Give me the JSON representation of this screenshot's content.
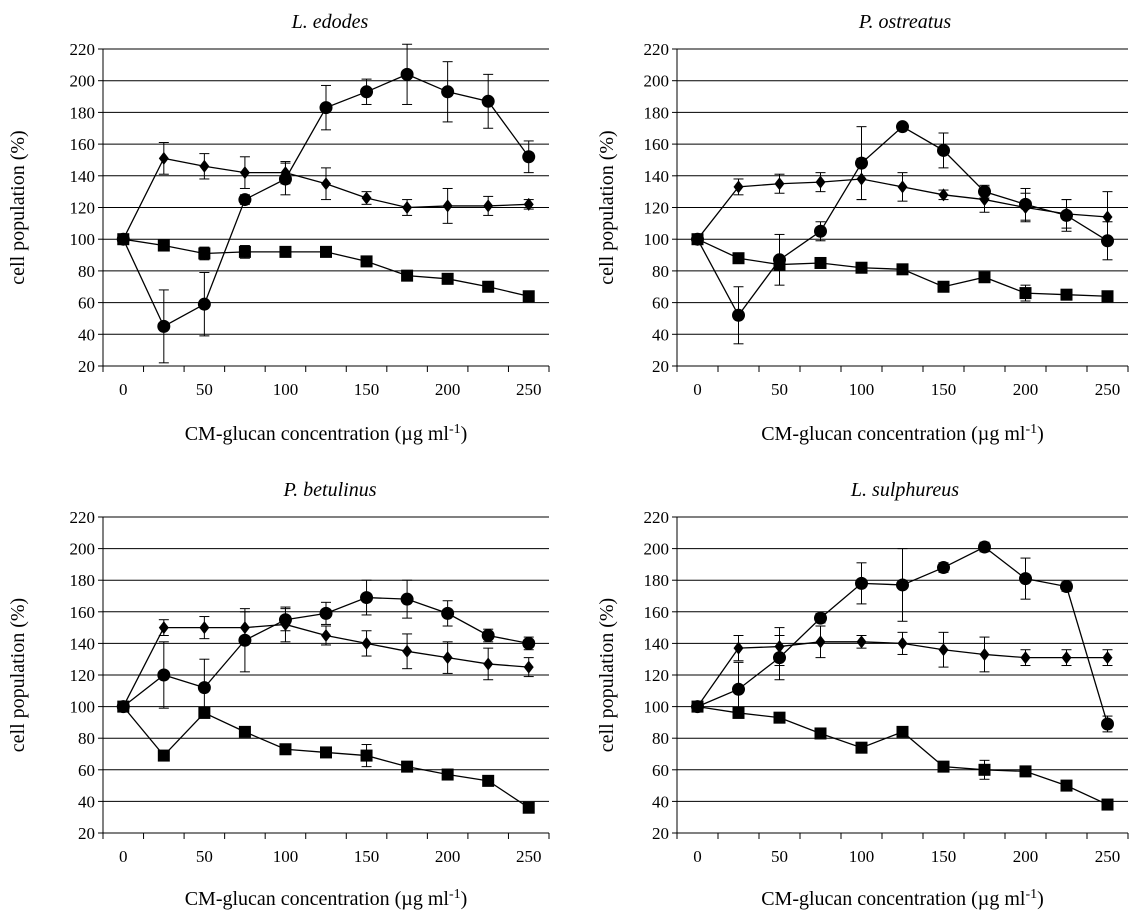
{
  "figure": {
    "xlabel_main": "CM-glucan concentration (µg ml",
    "xlabel_sup": "-1",
    "xlabel_end": ")",
    "ylabel": "cell population (%)"
  },
  "chart_data": [
    {
      "type": "line",
      "title": "L. edodes",
      "xlabel": "CM-glucan concentration (µg ml-1)",
      "ylabel": "cell population (%)",
      "xlim": [
        -12.5,
        262.5
      ],
      "ylim": [
        20,
        220
      ],
      "xticks": [
        0,
        50,
        100,
        150,
        200,
        250
      ],
      "yticks": [
        20,
        40,
        60,
        80,
        100,
        120,
        140,
        160,
        180,
        200,
        220
      ],
      "grid": "horizontal",
      "x": [
        0,
        25,
        50,
        75,
        100,
        125,
        150,
        175,
        200,
        225,
        250
      ],
      "series": [
        {
          "marker": "circle",
          "values": [
            100,
            45,
            59,
            125,
            138,
            183,
            193,
            204,
            193,
            187,
            152
          ],
          "errors": [
            3,
            23,
            20,
            3,
            10,
            14,
            8,
            19,
            19,
            17,
            10
          ]
        },
        {
          "marker": "diamond",
          "values": [
            100,
            151,
            146,
            142,
            142,
            135,
            126,
            120,
            121,
            121,
            122
          ],
          "errors": [
            3,
            10,
            8,
            10,
            7,
            10,
            4,
            5,
            11,
            6,
            3
          ]
        },
        {
          "marker": "square",
          "values": [
            100,
            96,
            91,
            92,
            92,
            92,
            86,
            77,
            75,
            70,
            64
          ],
          "errors": [
            3,
            3,
            4,
            4,
            3,
            3,
            3,
            3,
            3,
            3,
            3
          ]
        }
      ]
    },
    {
      "type": "line",
      "title": "P. ostreatus",
      "xlabel": "CM-glucan concentration (µg ml-1)",
      "ylabel": "cell population (%)",
      "xlim": [
        -12.5,
        262.5
      ],
      "ylim": [
        20,
        220
      ],
      "xticks": [
        0,
        50,
        100,
        150,
        200,
        250
      ],
      "yticks": [
        20,
        40,
        60,
        80,
        100,
        120,
        140,
        160,
        180,
        200,
        220
      ],
      "grid": "horizontal",
      "x": [
        0,
        25,
        50,
        75,
        100,
        125,
        150,
        175,
        200,
        225,
        250
      ],
      "series": [
        {
          "marker": "circle",
          "values": [
            100,
            52,
            87,
            105,
            148,
            171,
            156,
            130,
            122,
            115,
            99
          ],
          "errors": [
            3,
            18,
            16,
            6,
            23,
            2,
            11,
            4,
            10,
            10,
            12
          ]
        },
        {
          "marker": "diamond",
          "values": [
            100,
            133,
            135,
            136,
            138,
            133,
            128,
            125,
            120,
            116,
            114
          ],
          "errors": [
            3,
            5,
            6,
            6,
            13,
            9,
            3,
            8,
            9,
            9,
            16
          ]
        },
        {
          "marker": "square",
          "values": [
            100,
            88,
            84,
            85,
            82,
            81,
            70,
            76,
            66,
            65,
            64
          ],
          "errors": [
            3,
            3,
            3,
            3,
            3,
            3,
            3,
            3,
            5,
            3,
            3
          ]
        }
      ]
    },
    {
      "type": "line",
      "title": "P. betulinus",
      "xlabel": "CM-glucan concentration (µg ml-1)",
      "ylabel": "cell population (%)",
      "xlim": [
        -12.5,
        262.5
      ],
      "ylim": [
        20,
        220
      ],
      "xticks": [
        0,
        50,
        100,
        150,
        200,
        250
      ],
      "yticks": [
        20,
        40,
        60,
        80,
        100,
        120,
        140,
        160,
        180,
        200,
        220
      ],
      "grid": "horizontal",
      "x": [
        0,
        25,
        50,
        75,
        100,
        125,
        150,
        175,
        200,
        225,
        250
      ],
      "series": [
        {
          "marker": "circle",
          "values": [
            100,
            120,
            112,
            142,
            155,
            159,
            169,
            168,
            159,
            145,
            140
          ],
          "errors": [
            3,
            21,
            18,
            20,
            7,
            7,
            11,
            12,
            8,
            4,
            4
          ]
        },
        {
          "marker": "diamond",
          "values": [
            100,
            150,
            150,
            150,
            152,
            145,
            140,
            135,
            131,
            127,
            125
          ],
          "errors": [
            3,
            5,
            7,
            10,
            11,
            6,
            8,
            11,
            10,
            10,
            6
          ]
        },
        {
          "marker": "square",
          "values": [
            100,
            69,
            96,
            84,
            73,
            71,
            69,
            62,
            57,
            53,
            36
          ],
          "errors": [
            3,
            3,
            3,
            3,
            3,
            3,
            7,
            3,
            3,
            3,
            3
          ]
        }
      ]
    },
    {
      "type": "line",
      "title": "L. sulphureus",
      "xlabel": "CM-glucan concentration (µg ml-1)",
      "ylabel": "cell population (%)",
      "xlim": [
        -12.5,
        262.5
      ],
      "ylim": [
        20,
        220
      ],
      "xticks": [
        0,
        50,
        100,
        150,
        200,
        250
      ],
      "yticks": [
        20,
        40,
        60,
        80,
        100,
        120,
        140,
        160,
        180,
        200,
        220
      ],
      "grid": "horizontal",
      "x": [
        0,
        25,
        50,
        75,
        100,
        125,
        150,
        175,
        200,
        225,
        250
      ],
      "series": [
        {
          "marker": "circle",
          "values": [
            100,
            111,
            131,
            156,
            178,
            177,
            188,
            201,
            181,
            176,
            89
          ],
          "errors": [
            3,
            17,
            14,
            3,
            13,
            23,
            3,
            3,
            13,
            3,
            5
          ]
        },
        {
          "marker": "diamond",
          "values": [
            100,
            137,
            138,
            141,
            141,
            140,
            136,
            133,
            131,
            131,
            131
          ],
          "errors": [
            3,
            8,
            12,
            10,
            4,
            7,
            11,
            11,
            5,
            5,
            5
          ]
        },
        {
          "marker": "square",
          "values": [
            100,
            96,
            93,
            83,
            74,
            84,
            62,
            60,
            59,
            50,
            38
          ],
          "errors": [
            3,
            3,
            3,
            3,
            3,
            3,
            3,
            6,
            3,
            3,
            3
          ]
        }
      ]
    }
  ]
}
